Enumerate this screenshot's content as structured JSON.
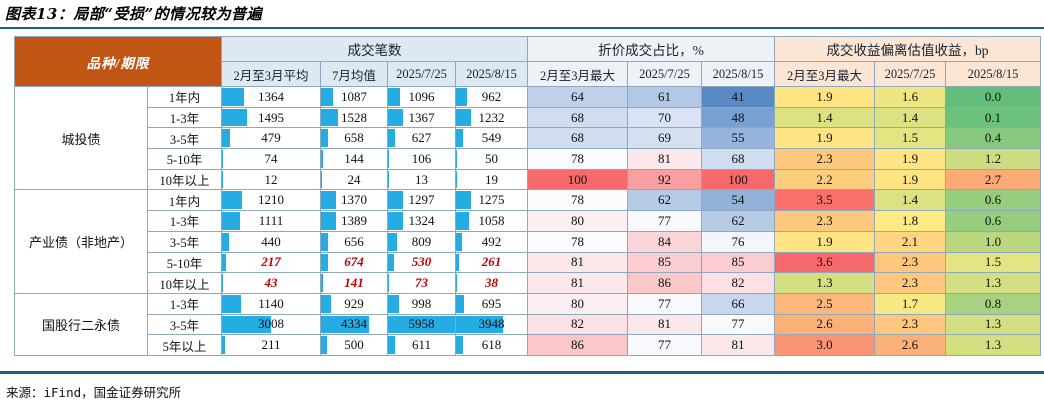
{
  "title": "图表13：局部“受损”的情况较为普遍",
  "source": "来源：iFind，国金证券研究所",
  "colors": {
    "corner_header_bg": "#C05514",
    "rule_line": "#1F5F7E",
    "data_bar": "#25ACE3",
    "grid_line": "#8FA8BD",
    "red_highlight": "#C00000",
    "group1_header_bg": "#DCE9F2",
    "group2_header_bg": "#EEF1F6",
    "group3_header_bg": "#FBE5D4"
  },
  "chart_data": {
    "type": "table",
    "title": "图表13：局部“受损”的情况较为普遍",
    "corner_header": "品种/期限",
    "column_groups": [
      {
        "label": "成交笔数",
        "bg": "#DCE9F2",
        "columns": [
          "2月至3月平均",
          "7月均值",
          "2025/7/25",
          "2025/8/15"
        ]
      },
      {
        "label": "折价成交占比，%",
        "bg": "#EEF1F6",
        "columns": [
          "2月至3月最大",
          "2025/7/25",
          "2025/8/15"
        ]
      },
      {
        "label": "成交收益偏离估值收益，bp",
        "bg": "#FBE5D4",
        "columns": [
          "2月至3月最大",
          "2025/7/25",
          "2025/8/15"
        ]
      }
    ],
    "row_groups": [
      {
        "name": "城投债",
        "rows": [
          {
            "term": "1年内",
            "counts": [
              1364,
              1087,
              1096,
              962
            ],
            "pct": [
              64,
              61,
              41
            ],
            "bp": [
              1.9,
              1.6,
              0.0
            ],
            "red": false
          },
          {
            "term": "1-3年",
            "counts": [
              1495,
              1528,
              1367,
              1232
            ],
            "pct": [
              68,
              70,
              48
            ],
            "bp": [
              1.4,
              1.4,
              0.1
            ],
            "red": false
          },
          {
            "term": "3-5年",
            "counts": [
              479,
              658,
              627,
              549
            ],
            "pct": [
              68,
              69,
              55
            ],
            "bp": [
              1.9,
              1.5,
              0.4
            ],
            "red": false
          },
          {
            "term": "5-10年",
            "counts": [
              74,
              144,
              106,
              50
            ],
            "pct": [
              78,
              81,
              68
            ],
            "bp": [
              2.3,
              1.9,
              1.2
            ],
            "red": false
          },
          {
            "term": "10年以上",
            "counts": [
              12,
              24,
              13,
              19
            ],
            "pct": [
              100,
              92,
              100
            ],
            "bp": [
              2.2,
              1.9,
              2.7
            ],
            "red": false
          }
        ]
      },
      {
        "name": "产业债（非地产）",
        "rows": [
          {
            "term": "1年内",
            "counts": [
              1210,
              1370,
              1297,
              1275
            ],
            "pct": [
              78,
              62,
              54
            ],
            "bp": [
              3.5,
              1.4,
              0.6
            ],
            "red": false
          },
          {
            "term": "1-3年",
            "counts": [
              1111,
              1389,
              1324,
              1058
            ],
            "pct": [
              80,
              77,
              62
            ],
            "bp": [
              2.3,
              1.8,
              0.6
            ],
            "red": false
          },
          {
            "term": "3-5年",
            "counts": [
              440,
              656,
              809,
              492
            ],
            "pct": [
              78,
              84,
              76
            ],
            "bp": [
              1.9,
              2.1,
              1.0
            ],
            "red": false
          },
          {
            "term": "5-10年",
            "counts": [
              217,
              674,
              530,
              261
            ],
            "pct": [
              81,
              85,
              85
            ],
            "bp": [
              3.6,
              2.3,
              1.5
            ],
            "red": true
          },
          {
            "term": "10年以上",
            "counts": [
              43,
              141,
              73,
              38
            ],
            "pct": [
              81,
              86,
              82
            ],
            "bp": [
              1.3,
              2.3,
              1.3
            ],
            "red": true
          }
        ]
      },
      {
        "name": "国股行二永债",
        "rows": [
          {
            "term": "1-3年",
            "counts": [
              1140,
              929,
              998,
              695
            ],
            "pct": [
              80,
              77,
              66
            ],
            "bp": [
              2.5,
              1.7,
              0.8
            ],
            "red": false
          },
          {
            "term": "3-5年",
            "counts": [
              3008,
              4334,
              5958,
              3948
            ],
            "pct": [
              82,
              81,
              77
            ],
            "bp": [
              2.6,
              2.3,
              1.3
            ],
            "red": false
          },
          {
            "term": "5年以上",
            "counts": [
              211,
              500,
              611,
              618
            ],
            "pct": [
              86,
              77,
              81
            ],
            "bp": [
              3.0,
              2.6,
              1.3
            ],
            "red": false
          }
        ]
      }
    ],
    "formatting": {
      "count_data_bar": {
        "color": "#25ACE3",
        "scale_min": 0,
        "scale_max": 5958
      },
      "pct_color_scale": {
        "min": 41,
        "mid": 78,
        "max": 100,
        "min_color": "#5A8AC6",
        "mid_color": "#FCFCFF",
        "max_color": "#F8696B"
      },
      "bp_color_scale": {
        "min": 0.0,
        "mid": 1.8,
        "max": 3.6,
        "min_color": "#63BE7B",
        "mid_color": "#FFEB84",
        "max_color": "#F8696B"
      }
    }
  }
}
